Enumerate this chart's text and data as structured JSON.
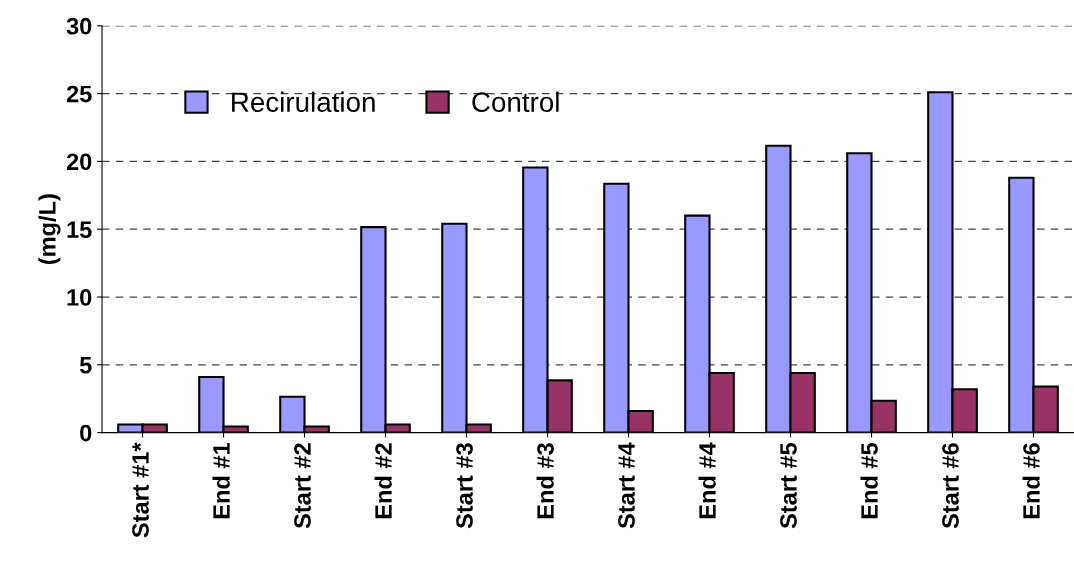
{
  "chart_data": {
    "type": "bar",
    "ylabel": "(mg/L)",
    "categories": [
      "Start #1*",
      "End #1",
      "Start #2",
      "End #2",
      "Start #3",
      "End #3",
      "Start #4",
      "End #4",
      "Start #5",
      "End #5",
      "Start #6",
      "End #6"
    ],
    "series": [
      {
        "name": "Recirulation",
        "color": "#9999ff",
        "values": [
          0.6,
          4.1,
          2.65,
          15.15,
          15.4,
          19.55,
          18.35,
          16.0,
          21.15,
          20.6,
          25.1,
          18.8
        ]
      },
      {
        "name": "Control",
        "color": "#993366",
        "values": [
          0.6,
          0.45,
          0.45,
          0.6,
          0.6,
          3.85,
          1.6,
          4.4,
          4.4,
          2.35,
          3.2,
          3.4
        ]
      }
    ],
    "ylim": [
      0,
      30
    ],
    "yticks": [
      0,
      5,
      10,
      15,
      20,
      25,
      30
    ],
    "grid": "y",
    "legend": "top left"
  }
}
